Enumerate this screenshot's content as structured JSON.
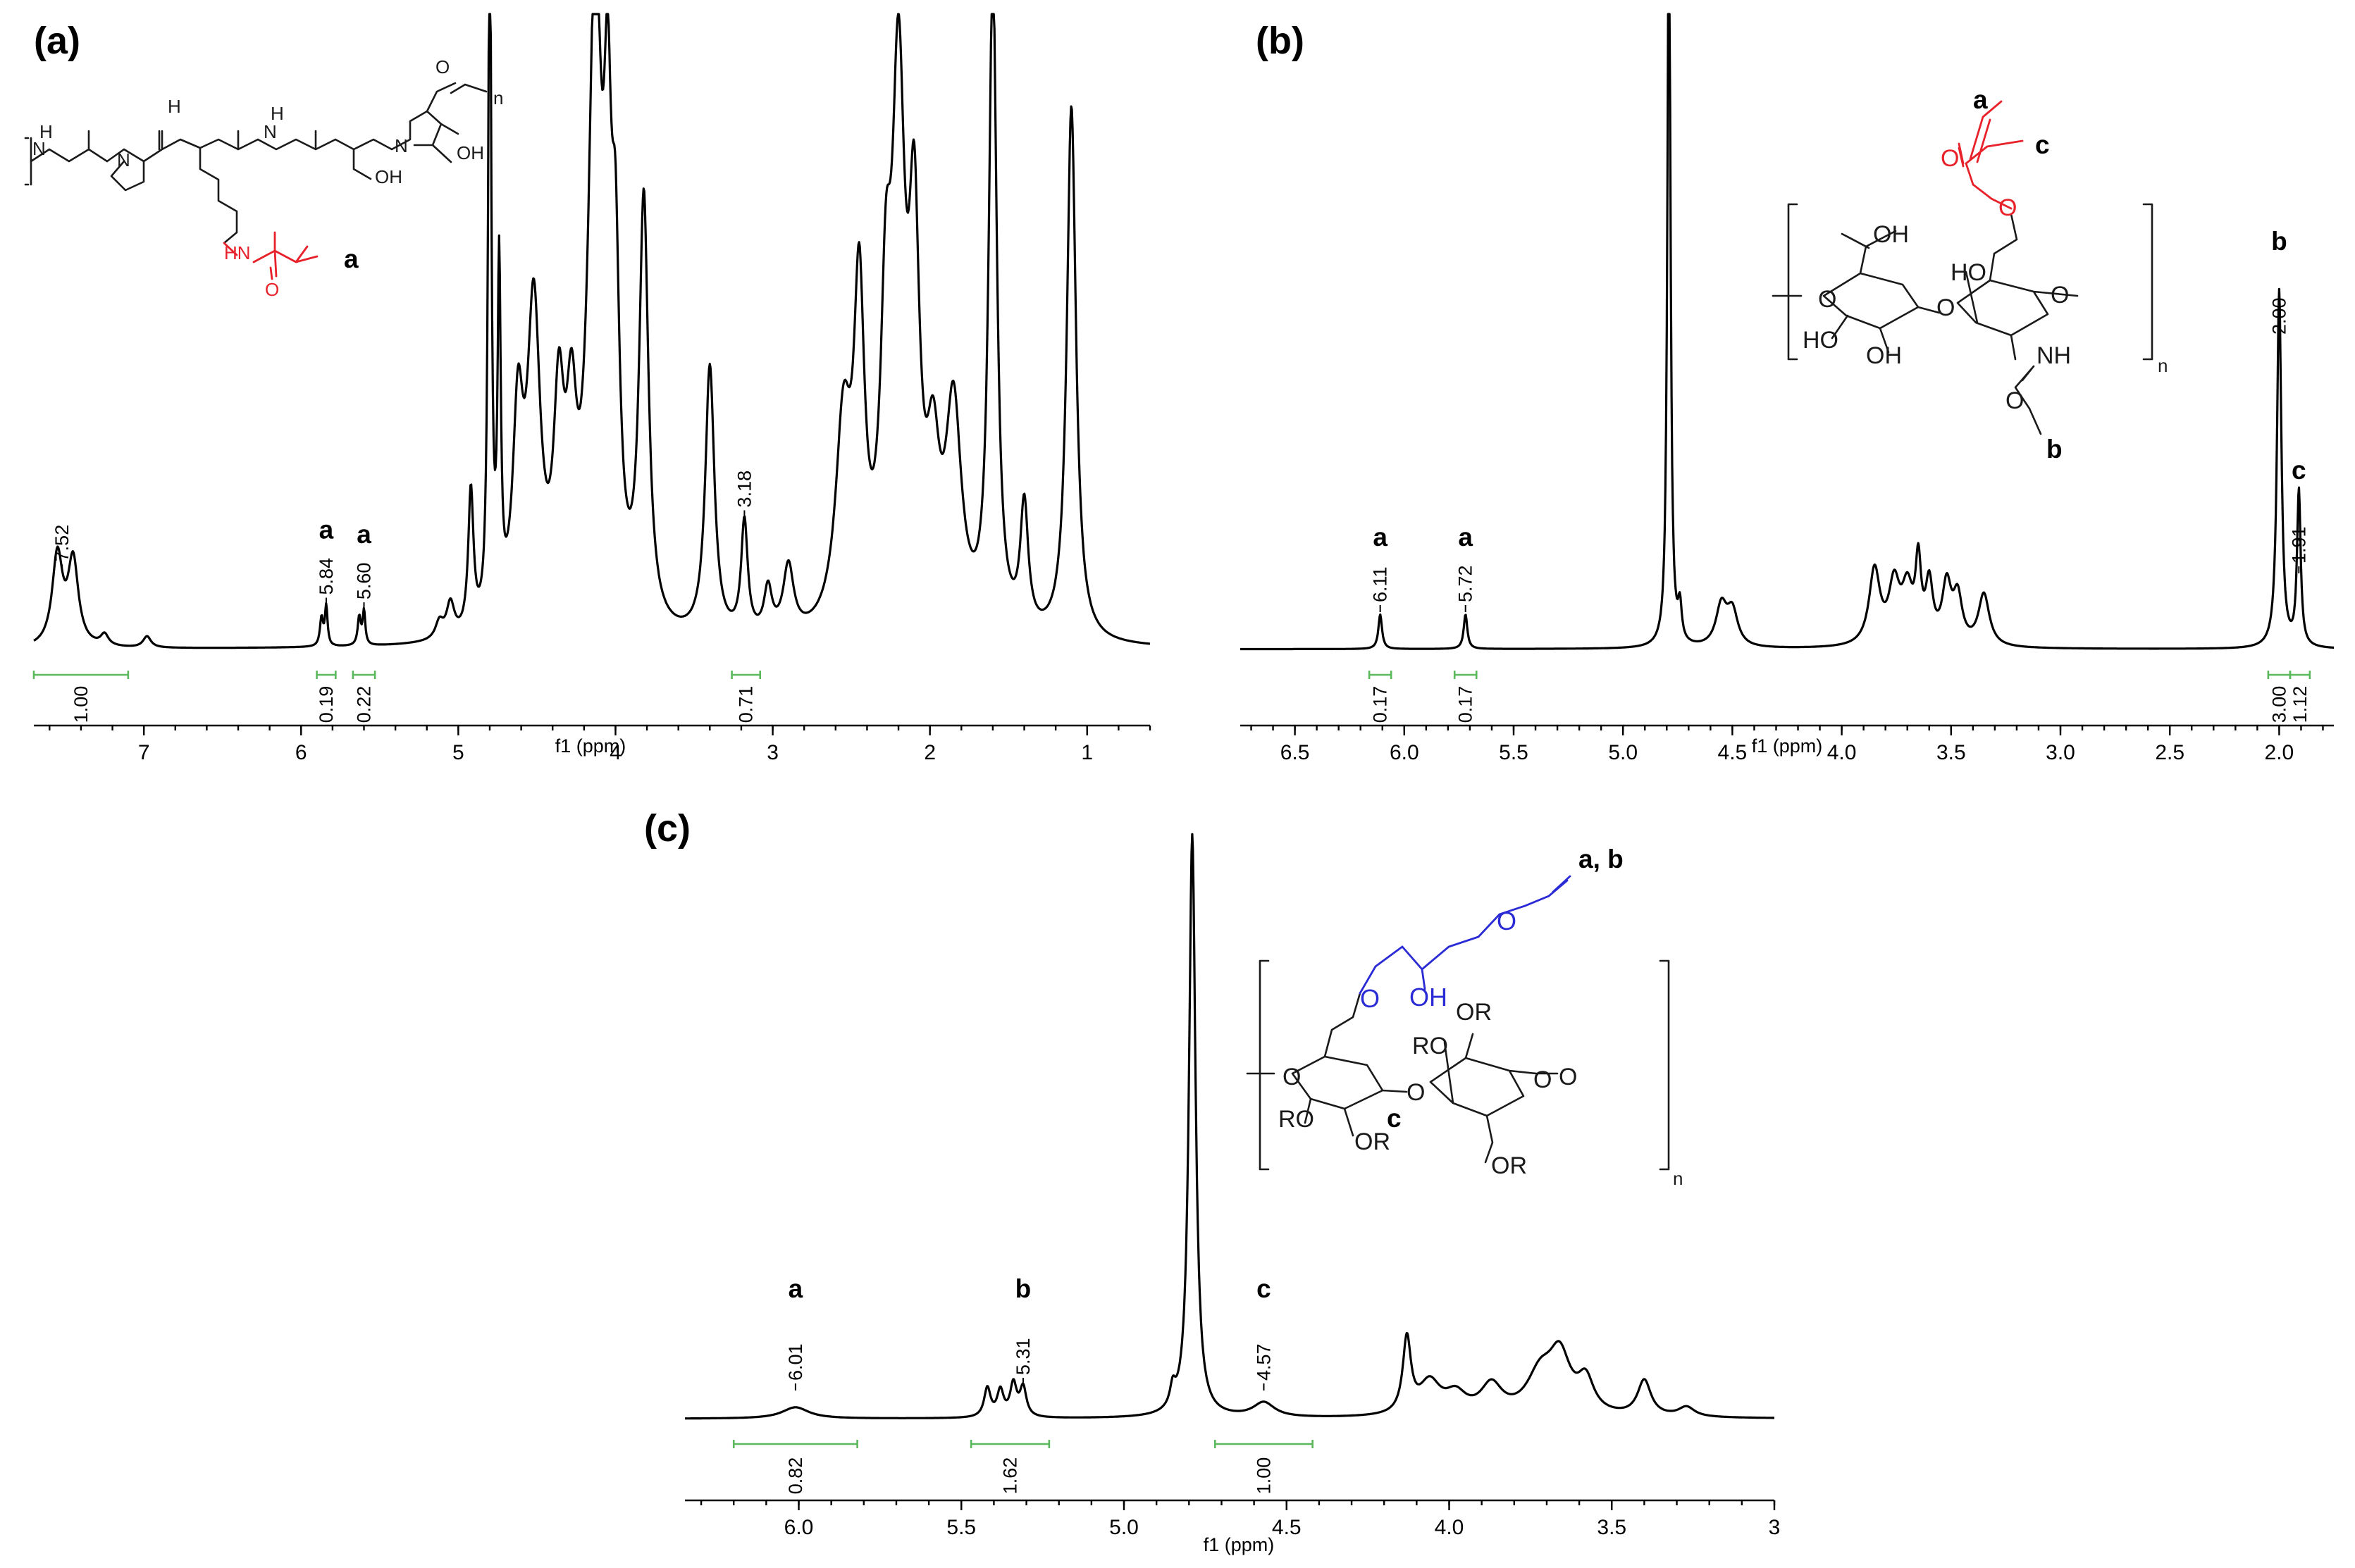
{
  "chart_data": [
    {
      "id": "a",
      "type": "line",
      "panel_label": "(a)",
      "xlabel": "f1 (ppm)",
      "xlim": [
        7.7,
        0.6
      ],
      "xticks": [
        7,
        6,
        5,
        4,
        3,
        2,
        1
      ],
      "peaks": [
        {
          "ppm": 7.52,
          "label": "7.52"
        },
        {
          "ppm": 5.84,
          "label": "5.84",
          "marker": "a"
        },
        {
          "ppm": 5.6,
          "label": "5.60",
          "marker": "a"
        },
        {
          "ppm": 3.18,
          "label": "3.18"
        }
      ],
      "integrals": [
        {
          "from": 7.7,
          "to": 7.1,
          "value": "1.00"
        },
        {
          "from": 5.9,
          "to": 5.78,
          "value": "0.19"
        },
        {
          "from": 5.67,
          "to": 5.53,
          "value": "0.22"
        },
        {
          "from": 3.26,
          "to": 3.08,
          "value": "0.71"
        }
      ],
      "spectrum": {
        "baseline": 0.02,
        "peaks": [
          [
            7.55,
            0.16,
            0.04
          ],
          [
            7.45,
            0.15,
            0.04
          ],
          [
            7.25,
            0.02,
            0.03
          ],
          [
            6.98,
            0.02,
            0.03
          ],
          [
            5.87,
            0.05,
            0.012
          ],
          [
            5.84,
            0.07,
            0.01
          ],
          [
            5.63,
            0.05,
            0.012
          ],
          [
            5.6,
            0.06,
            0.01
          ],
          [
            5.12,
            0.03,
            0.03
          ],
          [
            5.05,
            0.06,
            0.03
          ],
          [
            4.92,
            0.25,
            0.02
          ],
          [
            4.8,
            1.3,
            0.012
          ],
          [
            4.74,
            0.6,
            0.012
          ],
          [
            4.62,
            0.35,
            0.04
          ],
          [
            4.52,
            0.55,
            0.05
          ],
          [
            4.36,
            0.35,
            0.04
          ],
          [
            4.28,
            0.3,
            0.04
          ],
          [
            4.13,
            1.12,
            0.05
          ],
          [
            4.05,
            0.65,
            0.03
          ],
          [
            4.0,
            0.5,
            0.03
          ],
          [
            3.82,
            0.75,
            0.035
          ],
          [
            3.4,
            0.48,
            0.035
          ],
          [
            3.18,
            0.2,
            0.025
          ],
          [
            3.03,
            0.08,
            0.03
          ],
          [
            2.9,
            0.12,
            0.04
          ],
          [
            2.55,
            0.35,
            0.06
          ],
          [
            2.45,
            0.55,
            0.04
          ],
          [
            2.28,
            0.45,
            0.04
          ],
          [
            2.2,
            0.9,
            0.05
          ],
          [
            2.1,
            0.62,
            0.04
          ],
          [
            1.98,
            0.25,
            0.05
          ],
          [
            1.85,
            0.38,
            0.06
          ],
          [
            1.6,
            1.18,
            0.03
          ],
          [
            1.4,
            0.22,
            0.03
          ],
          [
            1.1,
            0.95,
            0.035
          ]
        ]
      },
      "structure": {
        "atoms": [
          "N",
          "H",
          "N",
          "H",
          "N",
          "H",
          "N",
          "OH",
          "OH",
          "O",
          "n",
          "HN",
          "O",
          "a"
        ]
      }
    },
    {
      "id": "b",
      "type": "line",
      "panel_label": "(b)",
      "xlabel": "f1 (ppm)",
      "xlim": [
        6.75,
        1.75
      ],
      "xticks": [
        "6.5",
        "6.0",
        "5.5",
        "5.0",
        "4.5",
        "4.0",
        "3.5",
        "3.0",
        "2.5",
        "2.0"
      ],
      "peaks": [
        {
          "ppm": 6.11,
          "label": "6.11",
          "marker": "a"
        },
        {
          "ppm": 5.72,
          "label": "5.72",
          "marker": "a"
        },
        {
          "ppm": 2.0,
          "label": "2.00",
          "marker": "b"
        },
        {
          "ppm": 1.91,
          "label": "1.91",
          "marker": "c"
        }
      ],
      "integrals": [
        {
          "from": 6.16,
          "to": 6.06,
          "value": "0.17"
        },
        {
          "from": 5.77,
          "to": 5.67,
          "value": "0.17"
        },
        {
          "from": 2.05,
          "to": 1.95,
          "value": "3.00"
        },
        {
          "from": 1.95,
          "to": 1.86,
          "value": "1.12"
        }
      ],
      "spectrum": {
        "baseline": 0.02,
        "peaks": [
          [
            6.11,
            0.06,
            0.01
          ],
          [
            5.72,
            0.06,
            0.01
          ],
          [
            4.79,
            1.4,
            0.008
          ],
          [
            4.74,
            0.06,
            0.01
          ],
          [
            4.55,
            0.07,
            0.03
          ],
          [
            4.5,
            0.06,
            0.03
          ],
          [
            3.85,
            0.13,
            0.03
          ],
          [
            3.76,
            0.1,
            0.03
          ],
          [
            3.7,
            0.09,
            0.03
          ],
          [
            3.65,
            0.13,
            0.015
          ],
          [
            3.6,
            0.1,
            0.02
          ],
          [
            3.52,
            0.1,
            0.025
          ],
          [
            3.47,
            0.08,
            0.025
          ],
          [
            3.35,
            0.09,
            0.03
          ],
          [
            2.0,
            0.62,
            0.012
          ],
          [
            1.91,
            0.27,
            0.01
          ]
        ]
      },
      "structure": {
        "atoms": [
          "OH",
          "O",
          "HO",
          "OH",
          "O",
          "HO",
          "O",
          "NH",
          "O",
          "O",
          "O",
          "a",
          "c",
          "b",
          "n"
        ]
      }
    },
    {
      "id": "c",
      "type": "line",
      "panel_label": "(c)",
      "xlabel": "f1 (ppm)",
      "xlim": [
        6.35,
        3.0
      ],
      "xticks": [
        "6.0",
        "5.5",
        "5.0",
        "4.5",
        "4.0",
        "3.5",
        "3"
      ],
      "peaks": [
        {
          "ppm": 6.01,
          "label": "6.01",
          "marker": "a"
        },
        {
          "ppm": 5.31,
          "label": "5.31",
          "marker": "b"
        },
        {
          "ppm": 4.57,
          "label": "4.57",
          "marker": "c"
        }
      ],
      "integrals": [
        {
          "from": 6.2,
          "to": 5.82,
          "value": "0.82"
        },
        {
          "from": 5.47,
          "to": 5.23,
          "value": "1.62"
        },
        {
          "from": 4.72,
          "to": 4.42,
          "value": "1.00"
        }
      ],
      "spectrum": {
        "baseline": 0.03,
        "peaks": [
          [
            6.01,
            0.035,
            0.05
          ],
          [
            5.42,
            0.09,
            0.012
          ],
          [
            5.38,
            0.08,
            0.012
          ],
          [
            5.34,
            0.1,
            0.012
          ],
          [
            5.31,
            0.09,
            0.012
          ],
          [
            4.85,
            0.06,
            0.01
          ],
          [
            4.79,
            1.8,
            0.012
          ],
          [
            4.57,
            0.045,
            0.04
          ],
          [
            4.13,
            0.23,
            0.015
          ],
          [
            4.06,
            0.1,
            0.04
          ],
          [
            3.98,
            0.06,
            0.04
          ],
          [
            3.87,
            0.09,
            0.04
          ],
          [
            3.72,
            0.12,
            0.05
          ],
          [
            3.66,
            0.17,
            0.04
          ],
          [
            3.58,
            0.1,
            0.03
          ],
          [
            3.4,
            0.11,
            0.025
          ],
          [
            3.27,
            0.03,
            0.03
          ]
        ]
      },
      "structure": {
        "atoms": [
          "O",
          "O",
          "OH",
          "OR",
          "RO",
          "O",
          "O",
          "O",
          "RO",
          "OR",
          "c",
          "OR",
          "O",
          "a, b",
          "n"
        ]
      }
    }
  ]
}
